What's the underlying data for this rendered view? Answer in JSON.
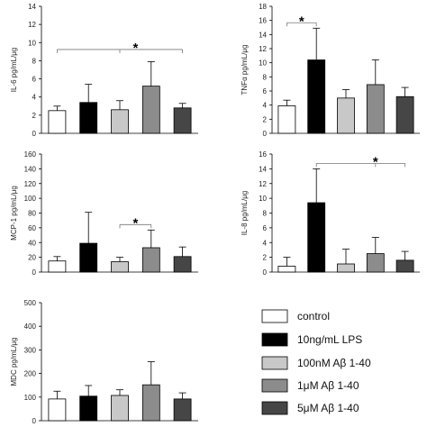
{
  "legend": [
    {
      "label": "control",
      "color": "#ffffff"
    },
    {
      "label": "10ng/mL LPS",
      "color": "#000000"
    },
    {
      "label": "100nM Aβ 1-40",
      "color": "#c8c8c8"
    },
    {
      "label": "1μM Aβ 1-40",
      "color": "#8c8c8c"
    },
    {
      "label": "5μM Aβ 1-40",
      "color": "#464646"
    }
  ],
  "chart_data": [
    {
      "type": "bar",
      "ylabel": "IL-6 pg/mL/μg",
      "ylim": [
        0,
        14
      ],
      "yticks": [
        0,
        2,
        4,
        6,
        8,
        10,
        12,
        14
      ],
      "series": [
        {
          "values": [
            2.5,
            3.4,
            2.6,
            5.2,
            2.8
          ],
          "errors": [
            0.5,
            2.0,
            1.0,
            2.7,
            0.5
          ]
        }
      ],
      "significance": [
        {
          "label": "*",
          "from": 0,
          "to": 4,
          "style": "one-to-many"
        }
      ]
    },
    {
      "type": "bar",
      "ylabel": "TNFα pg/mL/μg",
      "ylim": [
        0,
        18
      ],
      "yticks": [
        0,
        2,
        4,
        6,
        8,
        10,
        12,
        14,
        16,
        18
      ],
      "series": [
        {
          "values": [
            3.9,
            10.4,
            5.0,
            6.9,
            5.2
          ],
          "errors": [
            0.8,
            4.5,
            1.2,
            3.5,
            1.3
          ]
        }
      ],
      "significance": [
        {
          "label": "*",
          "from": 0,
          "to": 1,
          "style": "pair"
        }
      ]
    },
    {
      "type": "bar",
      "ylabel": "MCP-1 pg/mL/μg",
      "ylim": [
        0,
        160
      ],
      "yticks": [
        0,
        20,
        40,
        60,
        80,
        100,
        120,
        140,
        160
      ],
      "series": [
        {
          "values": [
            15,
            39,
            14,
            33,
            21
          ],
          "errors": [
            6,
            42,
            6,
            24,
            13
          ]
        }
      ],
      "significance": [
        {
          "label": "*",
          "from": 2,
          "to": 3,
          "style": "pair"
        }
      ]
    },
    {
      "type": "bar",
      "ylabel": "IL-8 pg/mL/μg",
      "ylim": [
        0,
        16
      ],
      "yticks": [
        0,
        2,
        4,
        6,
        8,
        10,
        12,
        14,
        16
      ],
      "series": [
        {
          "values": [
            0.8,
            9.4,
            1.1,
            2.5,
            1.6
          ],
          "errors": [
            1.2,
            4.6,
            2.0,
            2.2,
            1.2
          ]
        }
      ],
      "significance": [
        {
          "label": "*",
          "from": 1,
          "to": 4,
          "style": "one-to-many"
        }
      ]
    },
    {
      "type": "bar",
      "ylabel": "MDC pg/mL/μg",
      "ylim": [
        0,
        500
      ],
      "yticks": [
        0,
        100,
        200,
        300,
        400,
        500
      ],
      "series": [
        {
          "values": [
            92,
            104,
            107,
            152,
            92
          ],
          "errors": [
            33,
            45,
            24,
            98,
            26
          ]
        }
      ],
      "significance": []
    }
  ]
}
